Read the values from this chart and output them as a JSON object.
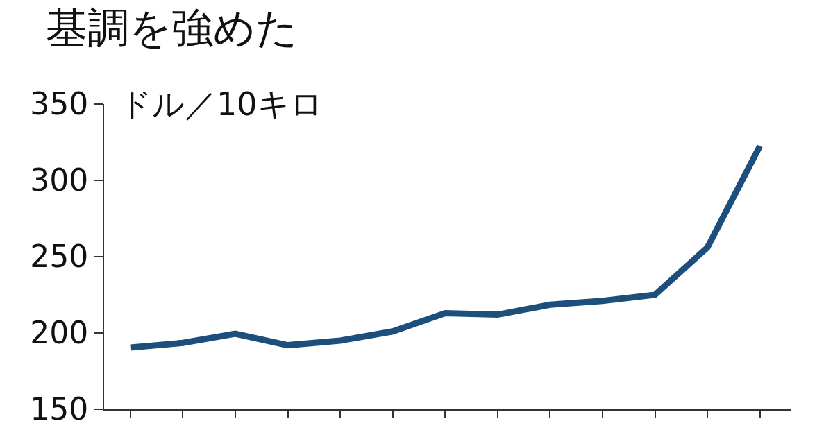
{
  "chart_data": {
    "type": "line",
    "title": "基調を強めた",
    "ylabel": "ドル／10キロ",
    "categories": [
      null,
      null,
      null,
      null,
      null,
      null,
      null,
      null,
      null,
      null,
      null,
      null,
      null
    ],
    "series": [
      {
        "color": "#1d4f7c",
        "values": [
          190.5,
          193.5,
          199.5,
          192,
          195,
          201,
          213,
          212,
          218.5,
          221,
          225,
          256,
          322.5
        ]
      }
    ],
    "ylim": [
      150,
      350
    ],
    "yticks": [
      150,
      200,
      250,
      300,
      350
    ],
    "marker": "none",
    "line_style": "solid"
  }
}
